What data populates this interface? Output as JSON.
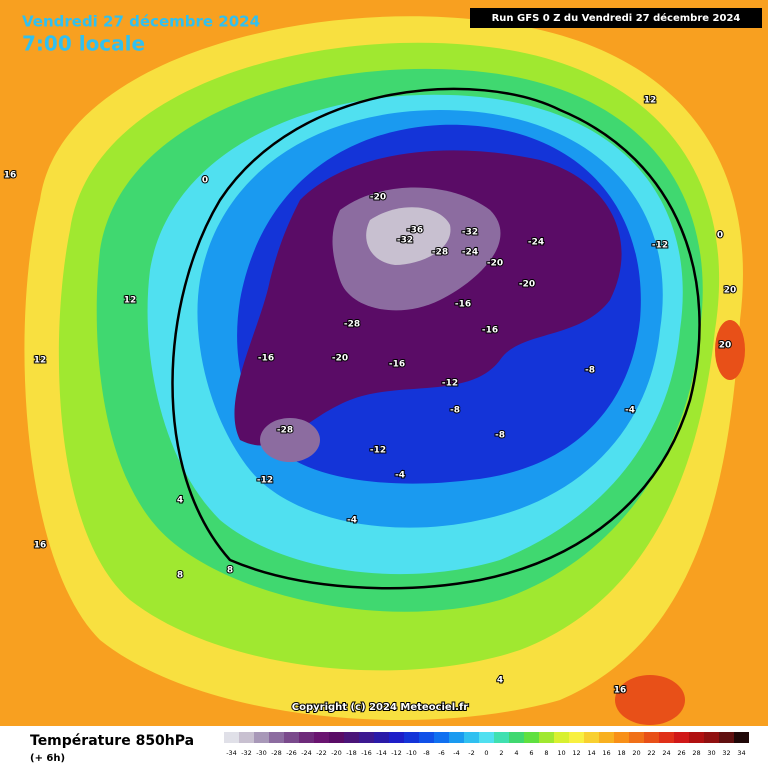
{
  "header": {
    "date": "Vendredi 27 décembre 2024",
    "time": "7:00 locale",
    "run": "Run GFS 0 Z du Vendredi 27 décembre 2024"
  },
  "copyright": "Copyright (c) 2024 Meteociel.fr",
  "legend": {
    "title": "Température 850hPa",
    "subtitle": "(+ 6h)",
    "values": [
      -34,
      -32,
      -30,
      -28,
      -26,
      -24,
      -22,
      -20,
      -18,
      -16,
      -14,
      -12,
      -10,
      -8,
      -6,
      -4,
      -2,
      0,
      2,
      4,
      6,
      8,
      10,
      12,
      14,
      16,
      18,
      20,
      22,
      24,
      26,
      28,
      30,
      32,
      34
    ],
    "colors": [
      "#e0e0e8",
      "#c8c0d0",
      "#a898b8",
      "#8c6ca0",
      "#7a4a8c",
      "#6e2a7a",
      "#6a1470",
      "#5a0c66",
      "#4a1478",
      "#3c1890",
      "#2a1aa8",
      "#1e1ec8",
      "#1434d8",
      "#1050e8",
      "#1070f0",
      "#1a9af0",
      "#30c0f0",
      "#50e0f0",
      "#40e0b0",
      "#40d870",
      "#60e040",
      "#a0e830",
      "#d8f030",
      "#f8f040",
      "#f8d030",
      "#f8b020",
      "#f89018",
      "#f07018",
      "#e85018",
      "#e03018",
      "#d01818",
      "#b01010",
      "#901010",
      "#601010",
      "#200808"
    ]
  },
  "map": {
    "labels": [
      -20,
      -32,
      -36,
      -32,
      -28,
      -24,
      -20,
      -24,
      -20,
      -16,
      -16,
      -28,
      -16,
      -20,
      -16,
      -12,
      -12,
      -8,
      -8,
      -4,
      -4,
      0,
      4,
      8,
      12,
      16,
      12,
      16,
      20,
      20,
      -28,
      -12,
      -12,
      -8,
      -4,
      0,
      4,
      12,
      16,
      8
    ]
  }
}
